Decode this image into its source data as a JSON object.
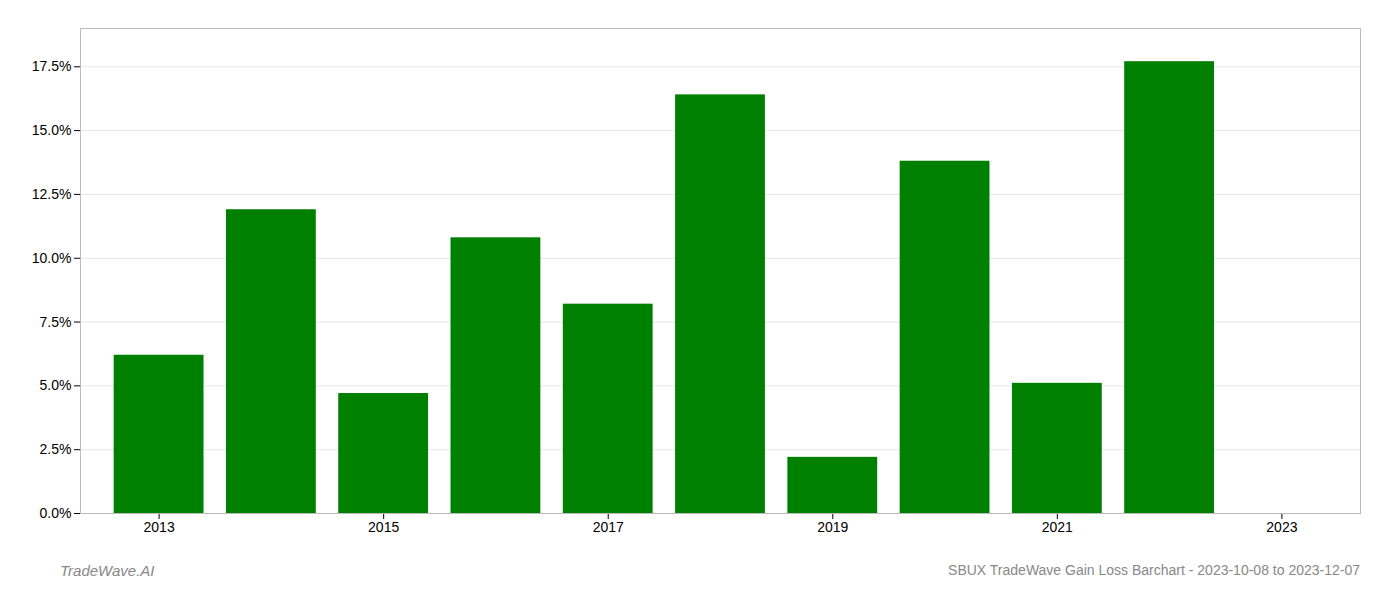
{
  "chart_data": {
    "type": "bar",
    "x": [
      2013,
      2014,
      2015,
      2016,
      2017,
      2018,
      2019,
      2020,
      2021,
      2022
    ],
    "values": [
      0.062,
      0.119,
      0.047,
      0.108,
      0.082,
      0.164,
      0.022,
      0.138,
      0.051,
      0.177
    ],
    "color": "#008000",
    "xlim": [
      2012.3,
      2023.7
    ],
    "xticks": [
      2013,
      2015,
      2017,
      2019,
      2021,
      2023
    ],
    "ylim": [
      0,
      0.19
    ],
    "yticks": [
      {
        "value": 0.0,
        "label": "0.0%"
      },
      {
        "value": 0.025,
        "label": "2.5%"
      },
      {
        "value": 0.05,
        "label": "5.0%"
      },
      {
        "value": 0.075,
        "label": "7.5%"
      },
      {
        "value": 0.1,
        "label": "10.0%"
      },
      {
        "value": 0.125,
        "label": "12.5%"
      },
      {
        "value": 0.15,
        "label": "15.0%"
      },
      {
        "value": 0.175,
        "label": "17.5%"
      }
    ],
    "grid": true,
    "annotations": [
      "TradeWave.AI",
      "SBUX TradeWave Gain Loss Barchart - 2023-10-08 to 2023-12-07"
    ]
  }
}
